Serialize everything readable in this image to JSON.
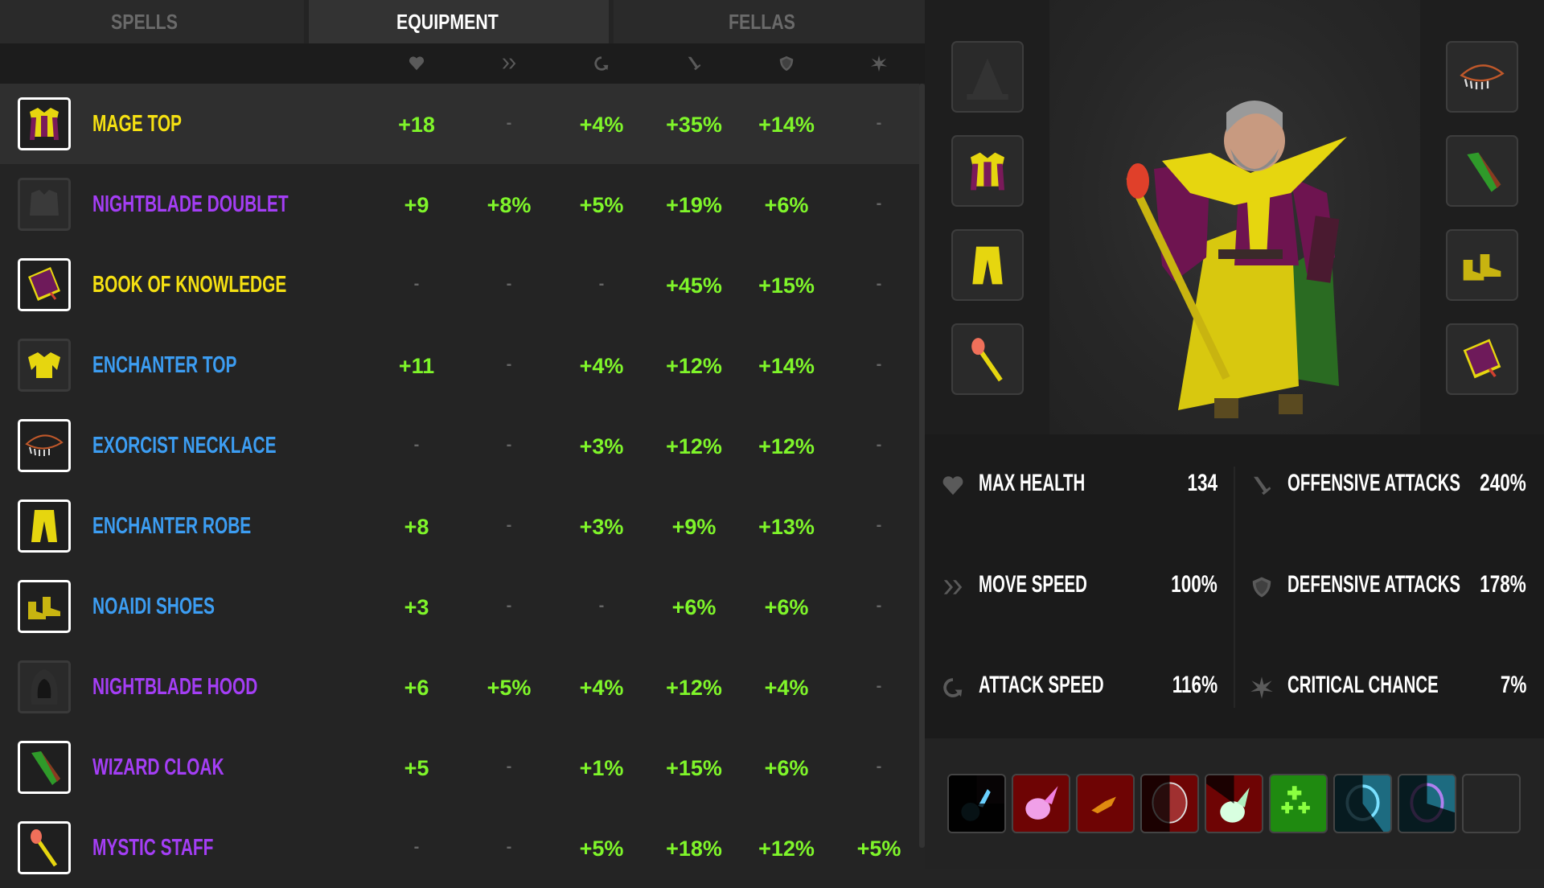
{
  "tabs": [
    {
      "label": "SPELLS"
    },
    {
      "label": "EQUIPMENT"
    },
    {
      "label": "FELLAS"
    }
  ],
  "active_tab": "EQUIPMENT",
  "columns": [
    "heart-icon",
    "chevrons-icon",
    "cycle-arrow-icon",
    "sword-icon",
    "shield-icon",
    "starburst-icon"
  ],
  "rarity_colors": {
    "yellow": "#f5e012",
    "purple": "#a43ef5",
    "blue": "#3c9df2",
    "bonus": "#7ff52a"
  },
  "items": [
    {
      "name": "MAGE TOP",
      "rarity": "yellow",
      "equipped": true,
      "selected": true,
      "icon": "mage-top",
      "stats": [
        "+18",
        "-",
        "+4%",
        "+35%",
        "+14%",
        "-"
      ]
    },
    {
      "name": "NIGHTBLADE DOUBLET",
      "rarity": "purple",
      "equipped": false,
      "icon": "nightblade-doublet",
      "stats": [
        "+9",
        "+8%",
        "+5%",
        "+19%",
        "+6%",
        "-"
      ]
    },
    {
      "name": "BOOK OF KNOWLEDGE",
      "rarity": "yellow",
      "equipped": true,
      "icon": "book",
      "stats": [
        "-",
        "-",
        "-",
        "+45%",
        "+15%",
        "-"
      ]
    },
    {
      "name": "ENCHANTER TOP",
      "rarity": "blue",
      "equipped": false,
      "icon": "enchanter-top",
      "stats": [
        "+11",
        "-",
        "+4%",
        "+12%",
        "+14%",
        "-"
      ]
    },
    {
      "name": "EXORCIST NECKLACE",
      "rarity": "blue",
      "equipped": true,
      "icon": "necklace",
      "stats": [
        "-",
        "-",
        "+3%",
        "+12%",
        "+12%",
        "-"
      ]
    },
    {
      "name": "ENCHANTER ROBE",
      "rarity": "blue",
      "equipped": true,
      "icon": "robe",
      "stats": [
        "+8",
        "-",
        "+3%",
        "+9%",
        "+13%",
        "-"
      ]
    },
    {
      "name": "NOAIDI SHOES",
      "rarity": "blue",
      "equipped": true,
      "icon": "shoes",
      "stats": [
        "+3",
        "-",
        "-",
        "+6%",
        "+6%",
        "-"
      ]
    },
    {
      "name": "NIGHTBLADE HOOD",
      "rarity": "purple",
      "equipped": false,
      "icon": "hood",
      "stats": [
        "+6",
        "+5%",
        "+4%",
        "+12%",
        "+4%",
        "-"
      ]
    },
    {
      "name": "WIZARD CLOAK",
      "rarity": "purple",
      "equipped": true,
      "icon": "cloak",
      "stats": [
        "+5",
        "-",
        "+1%",
        "+15%",
        "+6%",
        "-"
      ]
    },
    {
      "name": "MYSTIC STAFF",
      "rarity": "purple",
      "equipped": true,
      "icon": "staff",
      "stats": [
        "-",
        "-",
        "+5%",
        "+18%",
        "+12%",
        "+5%"
      ]
    }
  ],
  "slots_left": [
    "hat-empty",
    "mage-top",
    "robe",
    "staff"
  ],
  "slots_right": [
    "necklace",
    "cloak",
    "shoes",
    "book"
  ],
  "stats": [
    {
      "icon": "heart-icon",
      "label": "MAX HEALTH",
      "value": "134"
    },
    {
      "icon": "sword-icon",
      "label": "OFFENSIVE ATTACKS",
      "value": "240%"
    },
    {
      "icon": "chevrons-icon",
      "label": "MOVE SPEED",
      "value": "100%"
    },
    {
      "icon": "shield-icon",
      "label": "DEFENSIVE ATTACKS",
      "value": "178%"
    },
    {
      "icon": "cycle-arrow-icon",
      "label": "ATTACK SPEED",
      "value": "116%"
    },
    {
      "icon": "starburst-icon",
      "label": "CRITICAL CHANCE",
      "value": "7%"
    }
  ],
  "spells": [
    {
      "icon": "ice-claw",
      "bg": "#070405",
      "cooldown": 0.75
    },
    {
      "icon": "pink-fireball",
      "bg": "#6e0404",
      "cooldown": 0
    },
    {
      "icon": "ember-swarm",
      "bg": "#6e0404",
      "cooldown": 0
    },
    {
      "icon": "blood-orb",
      "bg": "#6e0404",
      "cooldown": 0.5
    },
    {
      "icon": "spirit-flame",
      "bg": "#6e0404",
      "cooldown": 0.15
    },
    {
      "icon": "healing-crosses",
      "bg": "#1f8a10",
      "cooldown": 0
    },
    {
      "icon": "water-ring",
      "bg": "#1d6b80",
      "cooldown": 0.6
    },
    {
      "icon": "arcane-ring",
      "bg": "#1d6b80",
      "cooldown": 0.7
    },
    {
      "icon": "empty",
      "bg": "#252525",
      "cooldown": 0
    }
  ]
}
